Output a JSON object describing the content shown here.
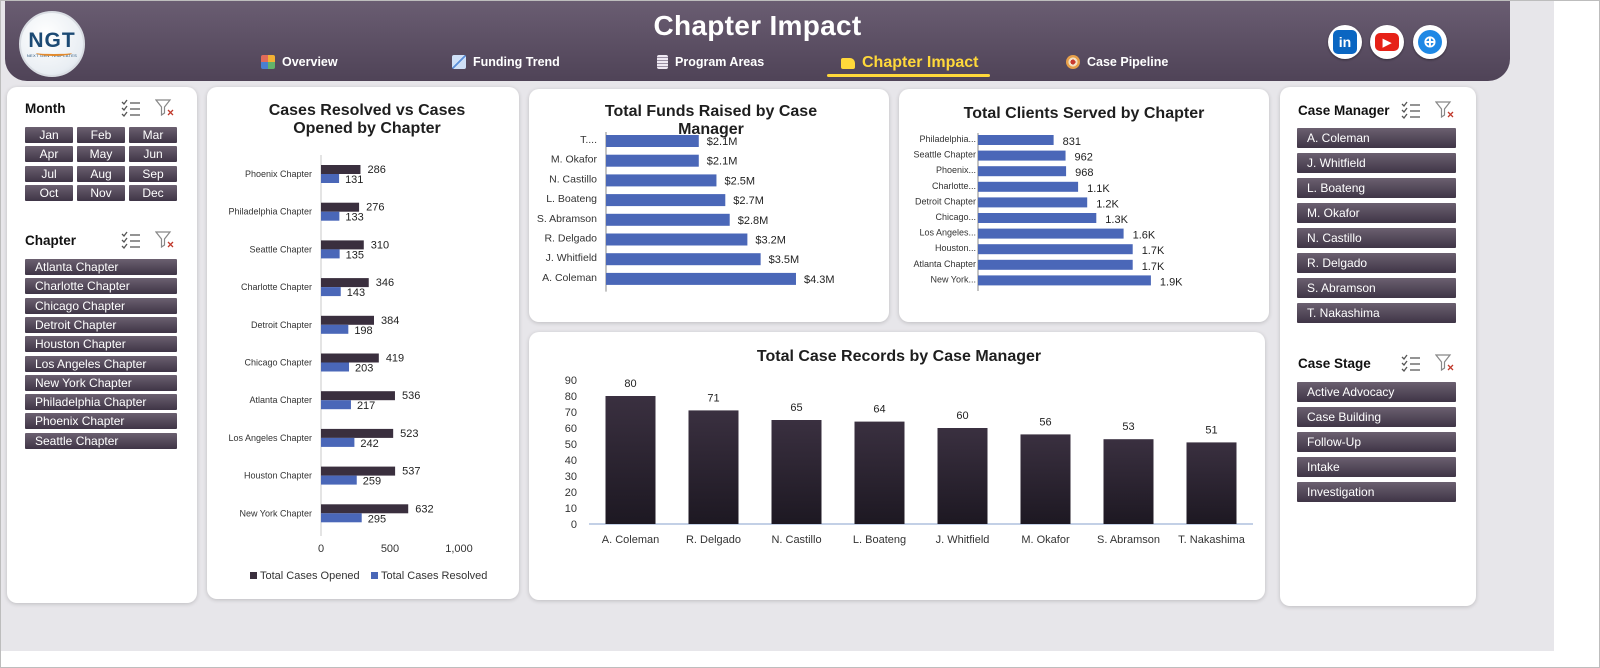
{
  "header": {
    "title": "Chapter Impact",
    "logo_text": "NGT",
    "logo_subtext": "NEXT GEN TEMPLATES",
    "nav": [
      {
        "label": "Overview",
        "icon": "overview-icon",
        "color": "#f2b134",
        "active": false
      },
      {
        "label": "Funding Trend",
        "icon": "trend-icon",
        "color": "#7ca4e0",
        "active": false
      },
      {
        "label": "Program Areas",
        "icon": "clipboard-icon",
        "color": "#d9d3e0",
        "active": false
      },
      {
        "label": "Chapter Impact",
        "icon": "folder-icon",
        "color": "#ffd83a",
        "active": true
      },
      {
        "label": "Case Pipeline",
        "icon": "target-icon",
        "color": "#e7a04a",
        "active": false
      }
    ],
    "social": [
      {
        "name": "linkedin-icon",
        "glyph": "in",
        "color": "#0a66c2"
      },
      {
        "name": "youtube-icon",
        "glyph": "▶",
        "color": "#e62117"
      },
      {
        "name": "website-icon",
        "glyph": "⊕",
        "color": "#1e88e5"
      }
    ]
  },
  "slicers": {
    "month": {
      "title": "Month",
      "items": [
        "Jan",
        "Feb",
        "Mar",
        "Apr",
        "May",
        "Jun",
        "Jul",
        "Aug",
        "Sep",
        "Oct",
        "Nov",
        "Dec"
      ]
    },
    "chapter": {
      "title": "Chapter",
      "items": [
        "Atlanta Chapter",
        "Charlotte Chapter",
        "Chicago Chapter",
        "Detroit Chapter",
        "Houston Chapter",
        "Los Angeles Chapter",
        "New York Chapter",
        "Philadelphia Chapter",
        "Phoenix Chapter",
        "Seattle Chapter"
      ]
    },
    "case_manager": {
      "title": "Case Manager",
      "items": [
        "A. Coleman",
        "J. Whitfield",
        "L. Boateng",
        "M. Okafor",
        "N. Castillo",
        "R. Delgado",
        "S. Abramson",
        "T. Nakashima"
      ]
    },
    "case_stage": {
      "title": "Case Stage",
      "items": [
        "Active Advocacy",
        "Case Building",
        "Follow-Up",
        "Intake",
        "Investigation"
      ]
    }
  },
  "colors": {
    "dark_bar": "#3a2f3e",
    "blue_bar": "#4a67b8",
    "column_top": "#3a3040",
    "column_bottom": "#1d1822"
  },
  "chart_data": [
    {
      "id": "resolved_vs_opened",
      "type": "bar",
      "title": "Cases Resolved vs Cases Opened by Chapter",
      "categories": [
        "Phoenix Chapter",
        "Philadelphia Chapter",
        "Seattle Chapter",
        "Charlotte Chapter",
        "Detroit Chapter",
        "Chicago Chapter",
        "Atlanta Chapter",
        "Los Angeles Chapter",
        "Houston Chapter",
        "New York Chapter"
      ],
      "series": [
        {
          "name": "Total Cases Opened",
          "values": [
            286,
            276,
            310,
            346,
            384,
            419,
            536,
            523,
            537,
            632
          ]
        },
        {
          "name": "Total Cases Resolved",
          "values": [
            131,
            133,
            135,
            143,
            198,
            203,
            217,
            242,
            259,
            295
          ]
        }
      ],
      "xticks": [
        "0",
        "500",
        "1,000"
      ],
      "xlim": [
        0,
        1000
      ],
      "legend": "bottom"
    },
    {
      "id": "funds_by_manager",
      "type": "bar",
      "title": "Total Funds Raised by Case Manager",
      "categories": [
        "T....",
        "M. Okafor",
        "N. Castillo",
        "L. Boateng",
        "S. Abramson",
        "R. Delgado",
        "J. Whitfield",
        "A. Coleman"
      ],
      "values": [
        2.1,
        2.1,
        2.5,
        2.7,
        2.8,
        3.2,
        3.5,
        4.3
      ],
      "labels": [
        "$2.1M",
        "$2.1M",
        "$2.5M",
        "$2.7M",
        "$2.8M",
        "$3.2M",
        "$3.5M",
        "$4.3M"
      ],
      "xlim": [
        0,
        5.5
      ]
    },
    {
      "id": "clients_by_chapter",
      "type": "bar",
      "title": "Total Clients Served by Chapter",
      "categories": [
        "Philadelphia...",
        "Seattle Chapter",
        "Phoenix...",
        "Charlotte...",
        "Detroit Chapter",
        "Chicago...",
        "Los Angeles...",
        "Houston...",
        "Atlanta Chapter",
        "New York..."
      ],
      "values": [
        831,
        962,
        968,
        1100,
        1200,
        1300,
        1600,
        1700,
        1700,
        1900
      ],
      "labels": [
        "831",
        "962",
        "968",
        "1.1K",
        "1.2K",
        "1.3K",
        "1.6K",
        "1.7K",
        "1.7K",
        "1.9K"
      ],
      "xlim": [
        0,
        3000
      ]
    },
    {
      "id": "records_by_manager",
      "type": "bar",
      "title": "Total Case Records by Case Manager",
      "categories": [
        "A. Coleman",
        "R. Delgado",
        "N. Castillo",
        "L. Boateng",
        "J. Whitfield",
        "M. Okafor",
        "S. Abramson",
        "T. Nakashima"
      ],
      "values": [
        80,
        71,
        65,
        64,
        60,
        56,
        53,
        51
      ],
      "yticks": [
        "0",
        "10",
        "20",
        "30",
        "40",
        "50",
        "60",
        "70",
        "80",
        "90"
      ],
      "ylim": [
        0,
        90
      ]
    }
  ]
}
